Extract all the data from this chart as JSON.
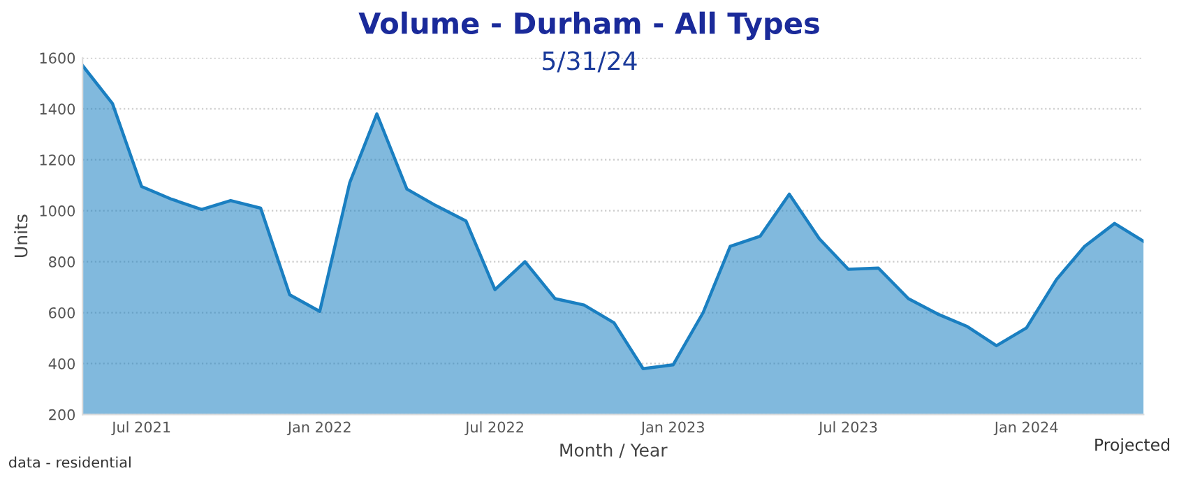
{
  "chart_data": {
    "type": "area",
    "title": "Volume - Durham - All Types",
    "subtitle": "5/31/24",
    "xlabel": "Month / Year",
    "ylabel": "Units",
    "x": [
      "2021-05",
      "2021-06",
      "2021-07",
      "2021-08",
      "2021-09",
      "2021-10",
      "2021-11",
      "2021-12",
      "2022-01",
      "2022-02",
      "2022-03",
      "2022-04",
      "2022-05",
      "2022-06",
      "2022-07",
      "2022-08",
      "2022-09",
      "2022-10",
      "2022-11",
      "2022-12",
      "2023-01",
      "2023-02",
      "2023-03",
      "2023-04",
      "2023-05",
      "2023-06",
      "2023-07",
      "2023-08",
      "2023-09",
      "2023-10",
      "2023-11",
      "2023-12",
      "2024-01",
      "2024-02",
      "2024-03",
      "2024-04",
      "2024-05"
    ],
    "series": [
      {
        "color": "#1a7fc1",
        "values": [
          1570,
          1420,
          1095,
          1045,
          1005,
          1040,
          1010,
          670,
          605,
          1110,
          1380,
          1085,
          1020,
          960,
          690,
          800,
          655,
          630,
          560,
          380,
          395,
          600,
          860,
          900,
          1065,
          890,
          770,
          775,
          655,
          595,
          545,
          470,
          540,
          730,
          860,
          950,
          880
        ]
      }
    ],
    "xlim": [
      "2021-05",
      "2024-05"
    ],
    "xticks": [
      {
        "value": "2021-07",
        "label": "Jul 2021"
      },
      {
        "value": "2022-01",
        "label": "Jan 2022"
      },
      {
        "value": "2022-07",
        "label": "Jul 2022"
      },
      {
        "value": "2023-01",
        "label": "Jan 2023"
      },
      {
        "value": "2023-07",
        "label": "Jul 2023"
      },
      {
        "value": "2024-01",
        "label": "Jan 2024"
      }
    ],
    "ylim": [
      200,
      1600
    ],
    "yticks": [
      200,
      400,
      600,
      800,
      1000,
      1200,
      1400,
      1600
    ],
    "grid": "y",
    "line_style": "solid",
    "legend": false,
    "annotations": [
      "data - residential",
      "Projected"
    ]
  }
}
